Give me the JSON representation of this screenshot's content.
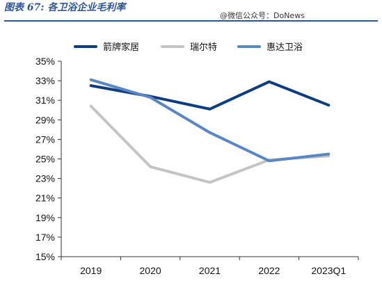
{
  "figure": {
    "title": "图表 67:  各卫浴企业毛利率",
    "watermark": "@微信公众号：DoNews"
  },
  "chart_data": {
    "type": "line",
    "title": "",
    "xlabel": "",
    "ylabel": "",
    "categories": [
      "2019",
      "2020",
      "2021",
      "2022",
      "2023Q1"
    ],
    "ylim": [
      15,
      35
    ],
    "yticks": [
      15,
      17,
      19,
      21,
      23,
      25,
      27,
      29,
      31,
      33,
      35
    ],
    "ytick_format": "percent",
    "grid": false,
    "legend_position": "top",
    "series": [
      {
        "name": "箭牌家居",
        "color": "#0d3c7f",
        "values": [
          32.5,
          31.4,
          30.1,
          32.9,
          30.5
        ]
      },
      {
        "name": "瑞尔特",
        "color": "#c4c4c4",
        "values": [
          30.4,
          24.2,
          22.6,
          24.9,
          25.3
        ]
      },
      {
        "name": "惠达卫浴",
        "color": "#5a86c2",
        "values": [
          33.1,
          31.3,
          27.7,
          24.8,
          25.5
        ]
      }
    ]
  }
}
